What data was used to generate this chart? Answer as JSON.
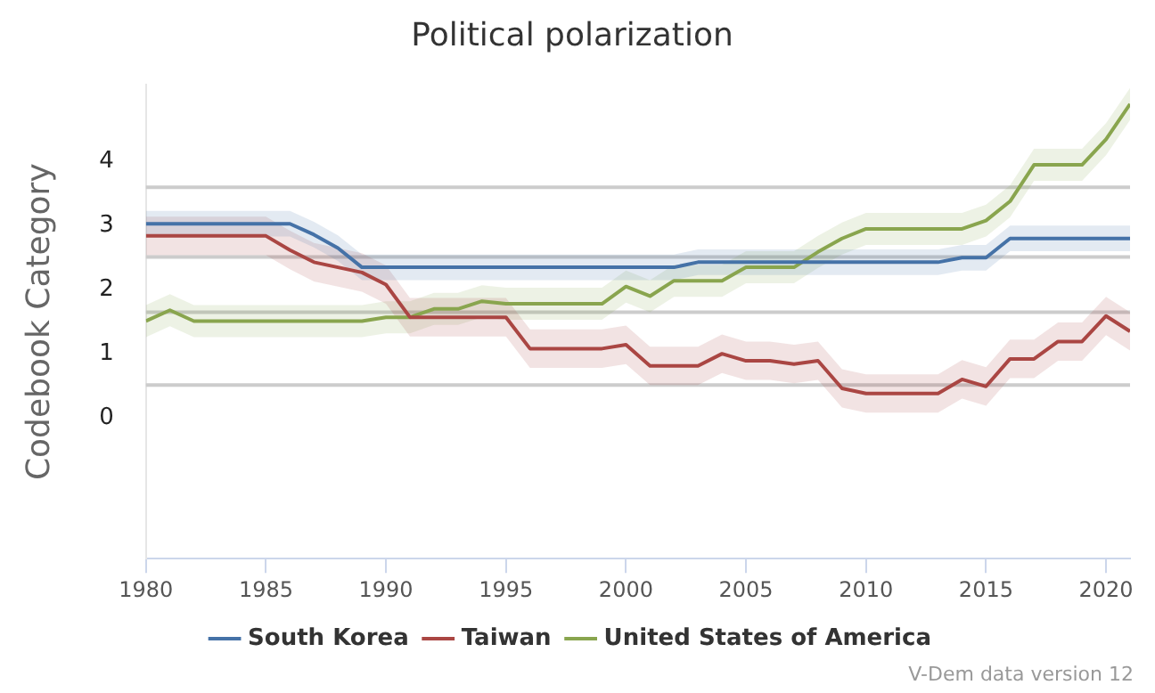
{
  "chart_data": {
    "type": "line",
    "title": "Political polarization",
    "ylabel": "Codebook Category",
    "x": [
      1980,
      1981,
      1982,
      1983,
      1984,
      1985,
      1986,
      1987,
      1988,
      1989,
      1990,
      1991,
      1992,
      1993,
      1994,
      1995,
      1996,
      1997,
      1998,
      1999,
      2000,
      2001,
      2002,
      2003,
      2004,
      2005,
      2006,
      2007,
      2008,
      2009,
      2010,
      2011,
      2012,
      2013,
      2014,
      2015,
      2016,
      2017,
      2018,
      2019,
      2020,
      2021
    ],
    "series": [
      {
        "name": "South Korea",
        "color": "#4572a7",
        "values": [
          3.03,
          3.03,
          3.03,
          3.03,
          3.03,
          3.03,
          3.03,
          2.86,
          2.65,
          2.35,
          2.35,
          2.35,
          2.35,
          2.35,
          2.35,
          2.35,
          2.35,
          2.35,
          2.35,
          2.35,
          2.35,
          2.35,
          2.35,
          2.43,
          2.43,
          2.43,
          2.43,
          2.43,
          2.43,
          2.43,
          2.43,
          2.43,
          2.43,
          2.43,
          2.5,
          2.5,
          2.8,
          2.8,
          2.8,
          2.8,
          2.8,
          2.8
        ],
        "lower": [
          2.83,
          2.83,
          2.83,
          2.83,
          2.83,
          2.83,
          2.83,
          2.66,
          2.45,
          2.15,
          2.15,
          2.15,
          2.15,
          2.15,
          2.15,
          2.15,
          2.15,
          2.15,
          2.15,
          2.15,
          2.15,
          2.15,
          2.15,
          2.23,
          2.23,
          2.23,
          2.23,
          2.23,
          2.23,
          2.23,
          2.23,
          2.23,
          2.23,
          2.23,
          2.3,
          2.3,
          2.6,
          2.6,
          2.6,
          2.6,
          2.6,
          2.6
        ],
        "upper": [
          3.23,
          3.23,
          3.23,
          3.23,
          3.23,
          3.23,
          3.23,
          3.06,
          2.85,
          2.55,
          2.55,
          2.55,
          2.55,
          2.55,
          2.55,
          2.55,
          2.55,
          2.55,
          2.55,
          2.55,
          2.55,
          2.55,
          2.55,
          2.63,
          2.63,
          2.63,
          2.63,
          2.63,
          2.63,
          2.63,
          2.63,
          2.63,
          2.63,
          2.63,
          2.7,
          2.7,
          3.0,
          3.0,
          3.0,
          3.0,
          3.0,
          3.0
        ]
      },
      {
        "name": "Taiwan",
        "color": "#aa4643",
        "values": [
          2.84,
          2.84,
          2.84,
          2.84,
          2.84,
          2.84,
          2.62,
          2.43,
          2.35,
          2.27,
          2.08,
          1.57,
          1.57,
          1.57,
          1.57,
          1.57,
          1.08,
          1.08,
          1.08,
          1.08,
          1.14,
          0.81,
          0.81,
          0.81,
          1.0,
          0.89,
          0.89,
          0.84,
          0.89,
          0.46,
          0.38,
          0.38,
          0.38,
          0.38,
          0.6,
          0.49,
          0.92,
          0.92,
          1.19,
          1.19,
          1.59,
          1.35
        ],
        "lower": [
          2.54,
          2.54,
          2.54,
          2.54,
          2.54,
          2.54,
          2.32,
          2.13,
          2.05,
          1.97,
          1.78,
          1.27,
          1.27,
          1.27,
          1.27,
          1.27,
          0.78,
          0.78,
          0.78,
          0.78,
          0.84,
          0.51,
          0.51,
          0.51,
          0.7,
          0.59,
          0.59,
          0.54,
          0.59,
          0.16,
          0.08,
          0.08,
          0.08,
          0.08,
          0.3,
          0.19,
          0.62,
          0.62,
          0.89,
          0.89,
          1.29,
          1.05
        ],
        "upper": [
          3.14,
          3.14,
          3.14,
          3.14,
          3.14,
          3.14,
          2.92,
          2.73,
          2.65,
          2.57,
          2.38,
          1.87,
          1.87,
          1.87,
          1.87,
          1.87,
          1.38,
          1.38,
          1.38,
          1.38,
          1.44,
          1.11,
          1.11,
          1.11,
          1.3,
          1.19,
          1.19,
          1.14,
          1.19,
          0.76,
          0.68,
          0.68,
          0.68,
          0.68,
          0.9,
          0.79,
          1.22,
          1.22,
          1.49,
          1.49,
          1.89,
          1.65
        ]
      },
      {
        "name": "United States of America",
        "color": "#89a54e",
        "values": [
          1.51,
          1.68,
          1.51,
          1.51,
          1.51,
          1.51,
          1.51,
          1.51,
          1.51,
          1.51,
          1.57,
          1.57,
          1.7,
          1.7,
          1.82,
          1.78,
          1.78,
          1.78,
          1.78,
          1.78,
          2.05,
          1.9,
          2.14,
          2.14,
          2.14,
          2.35,
          2.35,
          2.35,
          2.59,
          2.8,
          2.95,
          2.95,
          2.95,
          2.95,
          2.95,
          3.08,
          3.38,
          3.95,
          3.95,
          3.95,
          4.35,
          4.9
        ],
        "lower": [
          1.26,
          1.43,
          1.26,
          1.26,
          1.26,
          1.26,
          1.26,
          1.26,
          1.26,
          1.26,
          1.32,
          1.32,
          1.45,
          1.45,
          1.57,
          1.53,
          1.53,
          1.53,
          1.53,
          1.53,
          1.8,
          1.65,
          1.89,
          1.89,
          1.89,
          2.1,
          2.1,
          2.1,
          2.34,
          2.55,
          2.7,
          2.7,
          2.7,
          2.7,
          2.7,
          2.83,
          3.13,
          3.7,
          3.7,
          3.7,
          4.1,
          4.65
        ],
        "upper": [
          1.76,
          1.93,
          1.76,
          1.76,
          1.76,
          1.76,
          1.76,
          1.76,
          1.76,
          1.76,
          1.82,
          1.82,
          1.95,
          1.95,
          2.07,
          2.03,
          2.03,
          2.03,
          2.03,
          2.03,
          2.3,
          2.15,
          2.39,
          2.39,
          2.39,
          2.6,
          2.6,
          2.6,
          2.84,
          3.05,
          3.2,
          3.2,
          3.2,
          3.2,
          3.2,
          3.33,
          3.63,
          4.2,
          4.2,
          4.2,
          4.6,
          5.15
        ]
      }
    ],
    "xlim": [
      1980,
      2021
    ],
    "xticks": [
      1980,
      1985,
      1990,
      1995,
      2000,
      2005,
      2010,
      2015,
      2020
    ],
    "ylim": [
      -2.2,
      5.2
    ],
    "yticks": [
      0,
      1,
      2,
      3,
      4
    ],
    "ref_lines": [
      {
        "axis": "y",
        "value": 3.6,
        "color": "#cccccc"
      },
      {
        "axis": "y",
        "value": 2.51,
        "color": "#cccccc"
      },
      {
        "axis": "y",
        "value": 1.65,
        "color": "#cccccc"
      },
      {
        "axis": "y",
        "value": 0.51,
        "color": "#cccccc"
      }
    ],
    "grid": false,
    "legend": "bottom",
    "marker": "none",
    "line_style": "solid",
    "annotations": [
      "V-Dem data version 12"
    ]
  }
}
